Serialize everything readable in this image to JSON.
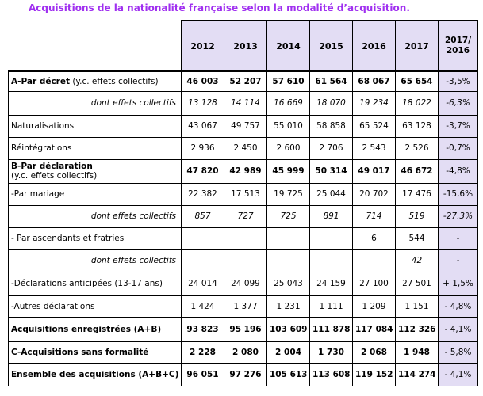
{
  "title": "Acquisitions de la nationalité française selon la modalité d’acquisition.",
  "columns": [
    "2012",
    "2013",
    "2014",
    "2015",
    "2016",
    "2017"
  ],
  "change_header": [
    "2017/",
    "2016"
  ],
  "rows": [
    {
      "label": "A-Par décret",
      "sub": " (y.c. effets collectifs)",
      "values": [
        "46 003",
        "52 207",
        "57 610",
        "61 564",
        "68 067",
        "65 654"
      ],
      "change": "-3,5%"
    },
    {
      "label": "dont effets collectifs",
      "values": [
        "13 128",
        "14 114",
        "16 669",
        "18 070",
        "19 234",
        "18 022"
      ],
      "change": "-6,3%"
    },
    {
      "label": "Naturalisations",
      "values": [
        "43 067",
        "49 757",
        "55 010",
        "58 858",
        "65 524",
        "63 128"
      ],
      "change": "-3,7%"
    },
    {
      "label": "Réintégrations",
      "values": [
        "2 936",
        "2 450",
        "2 600",
        "2 706",
        "2 543",
        "2 526"
      ],
      "change": "-0,7%"
    },
    {
      "label": "B-Par déclaration",
      "sub": "(y.c. effets collectifs)",
      "values": [
        "47 820",
        "42 989",
        "45 999",
        "50 314",
        "49 017",
        "46 672"
      ],
      "change": "-4,8%"
    },
    {
      "label": "-Par mariage",
      "values": [
        "22 382",
        "17 513",
        "19 725",
        "25 044",
        "20 702",
        "17 476"
      ],
      "change": "-15,6%"
    },
    {
      "label": "dont effets collectifs",
      "values": [
        "857",
        "727",
        "725",
        "891",
        "714",
        "519"
      ],
      "change": "-27,3%"
    },
    {
      "label": "- Par ascendants et fratries",
      "values": [
        "",
        "",
        "",
        "",
        "6",
        "544"
      ],
      "change": "-"
    },
    {
      "label": "dont effets collectifs",
      "values": [
        "",
        "",
        "",
        "",
        "",
        "42"
      ],
      "change": "-"
    },
    {
      "label": "-Déclarations anticipées (13-17 ans)",
      "values": [
        "24 014",
        "24 099",
        "25 043",
        "24 159",
        "27 100",
        "27 501"
      ],
      "change": "+ 1,5%"
    },
    {
      "label": "-Autres déclarations",
      "values": [
        "1 424",
        "1 377",
        "1 231",
        "1 111",
        "1 209",
        "1 151"
      ],
      "change": "- 4,8%"
    },
    {
      "label": "Acquisitions enregistrées (A+B)",
      "values": [
        "93 823",
        "95 196",
        "103 609",
        "111 878",
        "117 084",
        "112 326"
      ],
      "change": "- 4,1%"
    },
    {
      "label": "C-Acquisitions sans formalité",
      "values": [
        "2 228",
        "2 080",
        "2 004",
        "1 730",
        "2 068",
        "1 948"
      ],
      "change": "- 5,8%"
    },
    {
      "label": "Ensemble des acquisitions (A+B+C)",
      "values": [
        "96 051",
        "97 276",
        "105 613",
        "113 608",
        "119 152",
        "114 274"
      ],
      "change": "- 4,1%"
    }
  ]
}
